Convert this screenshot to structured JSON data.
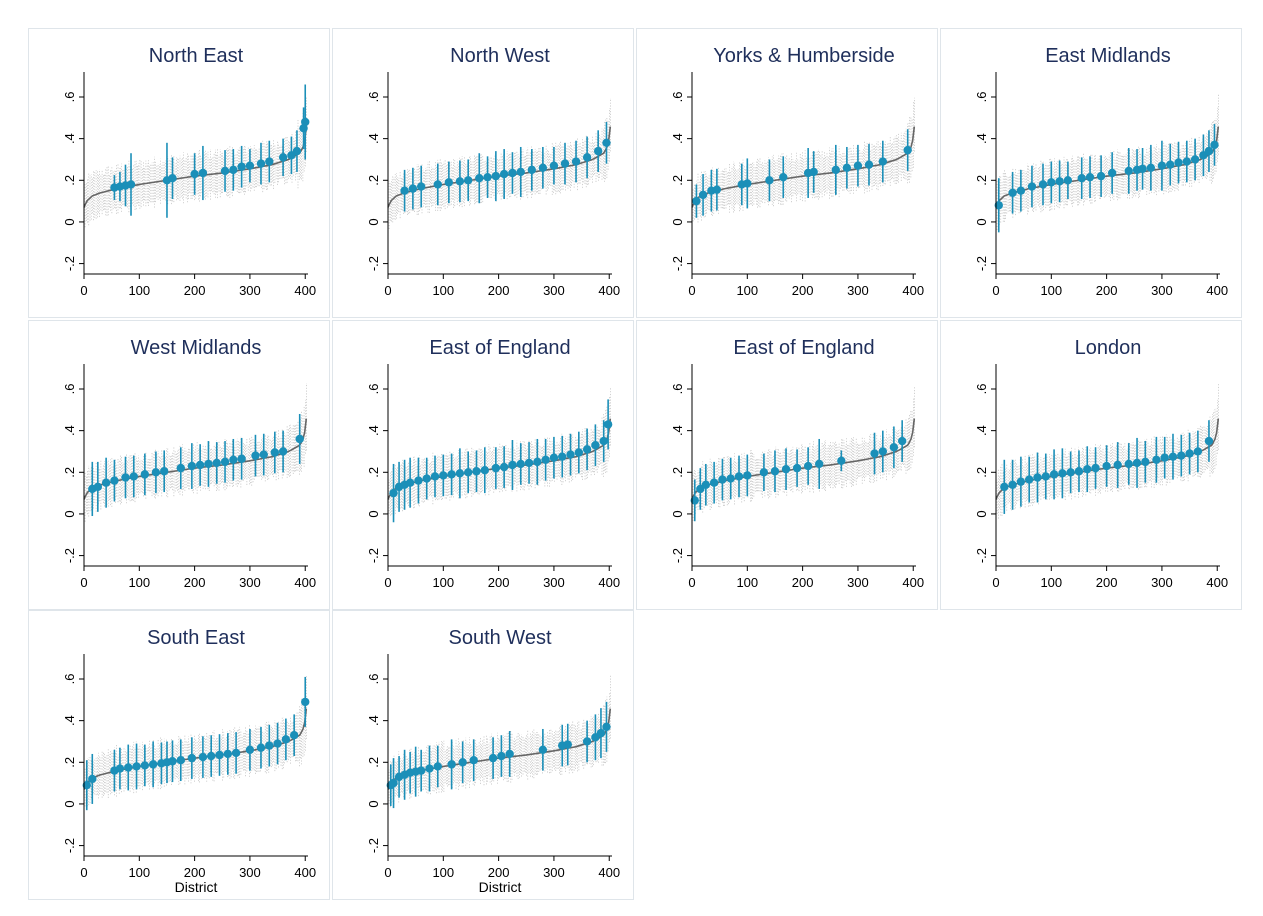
{
  "chart_data": {
    "type": "scatter",
    "layout": "small-multiples 4x3",
    "xlim": [
      0,
      405
    ],
    "ylim": [
      -0.25,
      0.72
    ],
    "xticks": [
      0,
      100,
      200,
      300,
      400
    ],
    "xtick_labels": [
      "0",
      "100",
      "200",
      "300",
      "400"
    ],
    "yticks": [
      -0.2,
      0,
      0.2,
      0.4,
      0.6
    ],
    "ytick_labels": [
      "-.2",
      "0",
      ".2",
      ".4",
      ".6"
    ],
    "xlabel": "District",
    "grid": false,
    "background_band": {
      "description": "national distribution of district estimates with 95% intervals",
      "curve": [
        [
          0,
          0.07
        ],
        [
          5,
          0.1
        ],
        [
          15,
          0.125
        ],
        [
          30,
          0.14
        ],
        [
          60,
          0.16
        ],
        [
          100,
          0.18
        ],
        [
          150,
          0.2
        ],
        [
          200,
          0.22
        ],
        [
          250,
          0.235
        ],
        [
          300,
          0.255
        ],
        [
          340,
          0.275
        ],
        [
          370,
          0.3
        ],
        [
          390,
          0.33
        ],
        [
          398,
          0.37
        ],
        [
          403,
          0.48
        ]
      ],
      "halfwidth": 0.1
    },
    "colors": {
      "panel_point": "#1b8fb8",
      "band": "#9a9a9a",
      "curve": "#666666",
      "title": "#1f2f5b",
      "frame": "#dfe5ea"
    },
    "panels": [
      {
        "title": "North East",
        "points": [
          [
            55,
            0.165,
            0.06
          ],
          [
            65,
            0.17,
            0.07
          ],
          [
            75,
            0.175,
            0.1
          ],
          [
            85,
            0.18,
            0.15
          ],
          [
            150,
            0.2,
            0.18
          ],
          [
            160,
            0.21,
            0.1
          ],
          [
            200,
            0.23,
            0.1
          ],
          [
            215,
            0.235,
            0.13
          ],
          [
            255,
            0.245,
            0.1
          ],
          [
            270,
            0.25,
            0.1
          ],
          [
            285,
            0.265,
            0.1
          ],
          [
            300,
            0.27,
            0.08
          ],
          [
            320,
            0.28,
            0.1
          ],
          [
            335,
            0.29,
            0.1
          ],
          [
            360,
            0.31,
            0.09
          ],
          [
            375,
            0.32,
            0.09
          ],
          [
            385,
            0.34,
            0.1
          ],
          [
            397,
            0.45,
            0.1
          ],
          [
            400,
            0.48,
            0.18
          ]
        ]
      },
      {
        "title": "North West",
        "points": [
          [
            30,
            0.15,
            0.1
          ],
          [
            45,
            0.16,
            0.1
          ],
          [
            60,
            0.17,
            0.1
          ],
          [
            90,
            0.18,
            0.1
          ],
          [
            110,
            0.19,
            0.1
          ],
          [
            130,
            0.195,
            0.1
          ],
          [
            145,
            0.2,
            0.1
          ],
          [
            165,
            0.21,
            0.12
          ],
          [
            180,
            0.215,
            0.1
          ],
          [
            195,
            0.22,
            0.12
          ],
          [
            210,
            0.23,
            0.12
          ],
          [
            225,
            0.235,
            0.1
          ],
          [
            240,
            0.24,
            0.12
          ],
          [
            260,
            0.25,
            0.1
          ],
          [
            280,
            0.26,
            0.1
          ],
          [
            300,
            0.27,
            0.09
          ],
          [
            320,
            0.28,
            0.1
          ],
          [
            340,
            0.29,
            0.1
          ],
          [
            360,
            0.31,
            0.1
          ],
          [
            380,
            0.34,
            0.1
          ],
          [
            395,
            0.38,
            0.1
          ]
        ]
      },
      {
        "title": "Yorks & Humberside",
        "points": [
          [
            8,
            0.1,
            0.08
          ],
          [
            20,
            0.13,
            0.1
          ],
          [
            35,
            0.15,
            0.1
          ],
          [
            45,
            0.155,
            0.1
          ],
          [
            90,
            0.18,
            0.1
          ],
          [
            100,
            0.185,
            0.12
          ],
          [
            140,
            0.2,
            0.1
          ],
          [
            165,
            0.215,
            0.1
          ],
          [
            210,
            0.235,
            0.12
          ],
          [
            220,
            0.24,
            0.1
          ],
          [
            260,
            0.25,
            0.12
          ],
          [
            280,
            0.26,
            0.1
          ],
          [
            300,
            0.27,
            0.1
          ],
          [
            320,
            0.275,
            0.1
          ],
          [
            345,
            0.29,
            0.1
          ],
          [
            390,
            0.345,
            0.1
          ]
        ]
      },
      {
        "title": "East Midlands",
        "points": [
          [
            5,
            0.08,
            0.13
          ],
          [
            30,
            0.14,
            0.1
          ],
          [
            45,
            0.15,
            0.1
          ],
          [
            65,
            0.17,
            0.1
          ],
          [
            85,
            0.18,
            0.1
          ],
          [
            100,
            0.19,
            0.1
          ],
          [
            115,
            0.195,
            0.1
          ],
          [
            130,
            0.2,
            0.09
          ],
          [
            155,
            0.21,
            0.1
          ],
          [
            170,
            0.215,
            0.1
          ],
          [
            190,
            0.22,
            0.1
          ],
          [
            210,
            0.235,
            0.1
          ],
          [
            240,
            0.245,
            0.11
          ],
          [
            255,
            0.25,
            0.1
          ],
          [
            265,
            0.255,
            0.1
          ],
          [
            280,
            0.26,
            0.11
          ],
          [
            300,
            0.27,
            0.12
          ],
          [
            315,
            0.275,
            0.1
          ],
          [
            330,
            0.285,
            0.1
          ],
          [
            345,
            0.29,
            0.1
          ],
          [
            360,
            0.3,
            0.1
          ],
          [
            375,
            0.32,
            0.1
          ],
          [
            385,
            0.34,
            0.1
          ],
          [
            395,
            0.37,
            0.1
          ]
        ]
      },
      {
        "title": "West Midlands",
        "points": [
          [
            15,
            0.12,
            0.13
          ],
          [
            25,
            0.13,
            0.12
          ],
          [
            40,
            0.15,
            0.12
          ],
          [
            55,
            0.16,
            0.1
          ],
          [
            75,
            0.175,
            0.1
          ],
          [
            90,
            0.18,
            0.1
          ],
          [
            110,
            0.19,
            0.1
          ],
          [
            130,
            0.2,
            0.1
          ],
          [
            145,
            0.205,
            0.1
          ],
          [
            175,
            0.22,
            0.1
          ],
          [
            195,
            0.23,
            0.11
          ],
          [
            210,
            0.235,
            0.1
          ],
          [
            225,
            0.24,
            0.11
          ],
          [
            240,
            0.245,
            0.1
          ],
          [
            255,
            0.25,
            0.1
          ],
          [
            270,
            0.26,
            0.1
          ],
          [
            285,
            0.265,
            0.1
          ],
          [
            310,
            0.28,
            0.1
          ],
          [
            325,
            0.285,
            0.1
          ],
          [
            345,
            0.295,
            0.1
          ],
          [
            360,
            0.3,
            0.1
          ],
          [
            390,
            0.36,
            0.12
          ]
        ]
      },
      {
        "title": "East of England",
        "points": [
          [
            10,
            0.1,
            0.14
          ],
          [
            20,
            0.13,
            0.12
          ],
          [
            30,
            0.14,
            0.12
          ],
          [
            40,
            0.15,
            0.12
          ],
          [
            55,
            0.16,
            0.11
          ],
          [
            70,
            0.17,
            0.1
          ],
          [
            85,
            0.18,
            0.1
          ],
          [
            100,
            0.185,
            0.1
          ],
          [
            115,
            0.19,
            0.1
          ],
          [
            130,
            0.195,
            0.12
          ],
          [
            145,
            0.2,
            0.1
          ],
          [
            160,
            0.205,
            0.1
          ],
          [
            175,
            0.21,
            0.11
          ],
          [
            195,
            0.22,
            0.1
          ],
          [
            210,
            0.225,
            0.1
          ],
          [
            225,
            0.235,
            0.12
          ],
          [
            240,
            0.24,
            0.1
          ],
          [
            255,
            0.245,
            0.1
          ],
          [
            270,
            0.25,
            0.11
          ],
          [
            285,
            0.26,
            0.1
          ],
          [
            300,
            0.27,
            0.1
          ],
          [
            315,
            0.275,
            0.1
          ],
          [
            330,
            0.285,
            0.1
          ],
          [
            345,
            0.295,
            0.1
          ],
          [
            360,
            0.31,
            0.1
          ],
          [
            375,
            0.33,
            0.1
          ],
          [
            390,
            0.35,
            0.1
          ],
          [
            398,
            0.43,
            0.12
          ]
        ]
      },
      {
        "title": "East of England",
        "points": [
          [
            5,
            0.065,
            0.1
          ],
          [
            15,
            0.12,
            0.1
          ],
          [
            25,
            0.14,
            0.1
          ],
          [
            40,
            0.15,
            0.1
          ],
          [
            55,
            0.165,
            0.1
          ],
          [
            70,
            0.17,
            0.1
          ],
          [
            85,
            0.18,
            0.1
          ],
          [
            100,
            0.185,
            0.1
          ],
          [
            130,
            0.2,
            0.09
          ],
          [
            150,
            0.205,
            0.1
          ],
          [
            170,
            0.215,
            0.1
          ],
          [
            190,
            0.22,
            0.09
          ],
          [
            210,
            0.23,
            0.09
          ],
          [
            230,
            0.24,
            0.12
          ],
          [
            270,
            0.255,
            0.05
          ],
          [
            330,
            0.29,
            0.1
          ],
          [
            345,
            0.3,
            0.1
          ],
          [
            365,
            0.32,
            0.1
          ],
          [
            380,
            0.35,
            0.1
          ]
        ]
      },
      {
        "title": "London",
        "points": [
          [
            15,
            0.13,
            0.13
          ],
          [
            30,
            0.14,
            0.12
          ],
          [
            45,
            0.155,
            0.12
          ],
          [
            60,
            0.165,
            0.11
          ],
          [
            75,
            0.175,
            0.12
          ],
          [
            90,
            0.18,
            0.11
          ],
          [
            105,
            0.19,
            0.12
          ],
          [
            120,
            0.195,
            0.12
          ],
          [
            135,
            0.2,
            0.1
          ],
          [
            150,
            0.205,
            0.1
          ],
          [
            165,
            0.215,
            0.11
          ],
          [
            180,
            0.22,
            0.1
          ],
          [
            200,
            0.23,
            0.1
          ],
          [
            220,
            0.235,
            0.11
          ],
          [
            240,
            0.24,
            0.1
          ],
          [
            255,
            0.245,
            0.12
          ],
          [
            270,
            0.25,
            0.1
          ],
          [
            290,
            0.26,
            0.11
          ],
          [
            305,
            0.27,
            0.1
          ],
          [
            320,
            0.275,
            0.11
          ],
          [
            335,
            0.28,
            0.1
          ],
          [
            350,
            0.29,
            0.1
          ],
          [
            365,
            0.3,
            0.1
          ],
          [
            385,
            0.35,
            0.1
          ]
        ]
      },
      {
        "title": "South East",
        "points": [
          [
            5,
            0.09,
            0.12
          ],
          [
            15,
            0.12,
            0.12
          ],
          [
            55,
            0.16,
            0.1
          ],
          [
            65,
            0.17,
            0.1
          ],
          [
            80,
            0.175,
            0.11
          ],
          [
            95,
            0.18,
            0.11
          ],
          [
            110,
            0.185,
            0.1
          ],
          [
            125,
            0.19,
            0.11
          ],
          [
            140,
            0.195,
            0.1
          ],
          [
            150,
            0.2,
            0.1
          ],
          [
            160,
            0.205,
            0.1
          ],
          [
            175,
            0.21,
            0.1
          ],
          [
            195,
            0.22,
            0.1
          ],
          [
            215,
            0.225,
            0.1
          ],
          [
            230,
            0.23,
            0.1
          ],
          [
            245,
            0.235,
            0.1
          ],
          [
            260,
            0.24,
            0.1
          ],
          [
            275,
            0.245,
            0.1
          ],
          [
            300,
            0.26,
            0.1
          ],
          [
            320,
            0.27,
            0.1
          ],
          [
            335,
            0.28,
            0.1
          ],
          [
            350,
            0.29,
            0.1
          ],
          [
            365,
            0.31,
            0.1
          ],
          [
            380,
            0.33,
            0.1
          ],
          [
            400,
            0.49,
            0.12
          ]
        ]
      },
      {
        "title": "South West",
        "points": [
          [
            5,
            0.09,
            0.1
          ],
          [
            10,
            0.1,
            0.12
          ],
          [
            20,
            0.13,
            0.1
          ],
          [
            30,
            0.14,
            0.12
          ],
          [
            40,
            0.15,
            0.1
          ],
          [
            50,
            0.155,
            0.12
          ],
          [
            60,
            0.16,
            0.1
          ],
          [
            75,
            0.17,
            0.11
          ],
          [
            90,
            0.18,
            0.1
          ],
          [
            115,
            0.19,
            0.12
          ],
          [
            135,
            0.2,
            0.1
          ],
          [
            155,
            0.21,
            0.1
          ],
          [
            190,
            0.22,
            0.1
          ],
          [
            205,
            0.23,
            0.1
          ],
          [
            220,
            0.24,
            0.11
          ],
          [
            280,
            0.26,
            0.1
          ],
          [
            315,
            0.28,
            0.1
          ],
          [
            325,
            0.285,
            0.1
          ],
          [
            360,
            0.3,
            0.1
          ],
          [
            375,
            0.32,
            0.11
          ],
          [
            385,
            0.34,
            0.12
          ],
          [
            395,
            0.37,
            0.12
          ]
        ]
      }
    ]
  }
}
